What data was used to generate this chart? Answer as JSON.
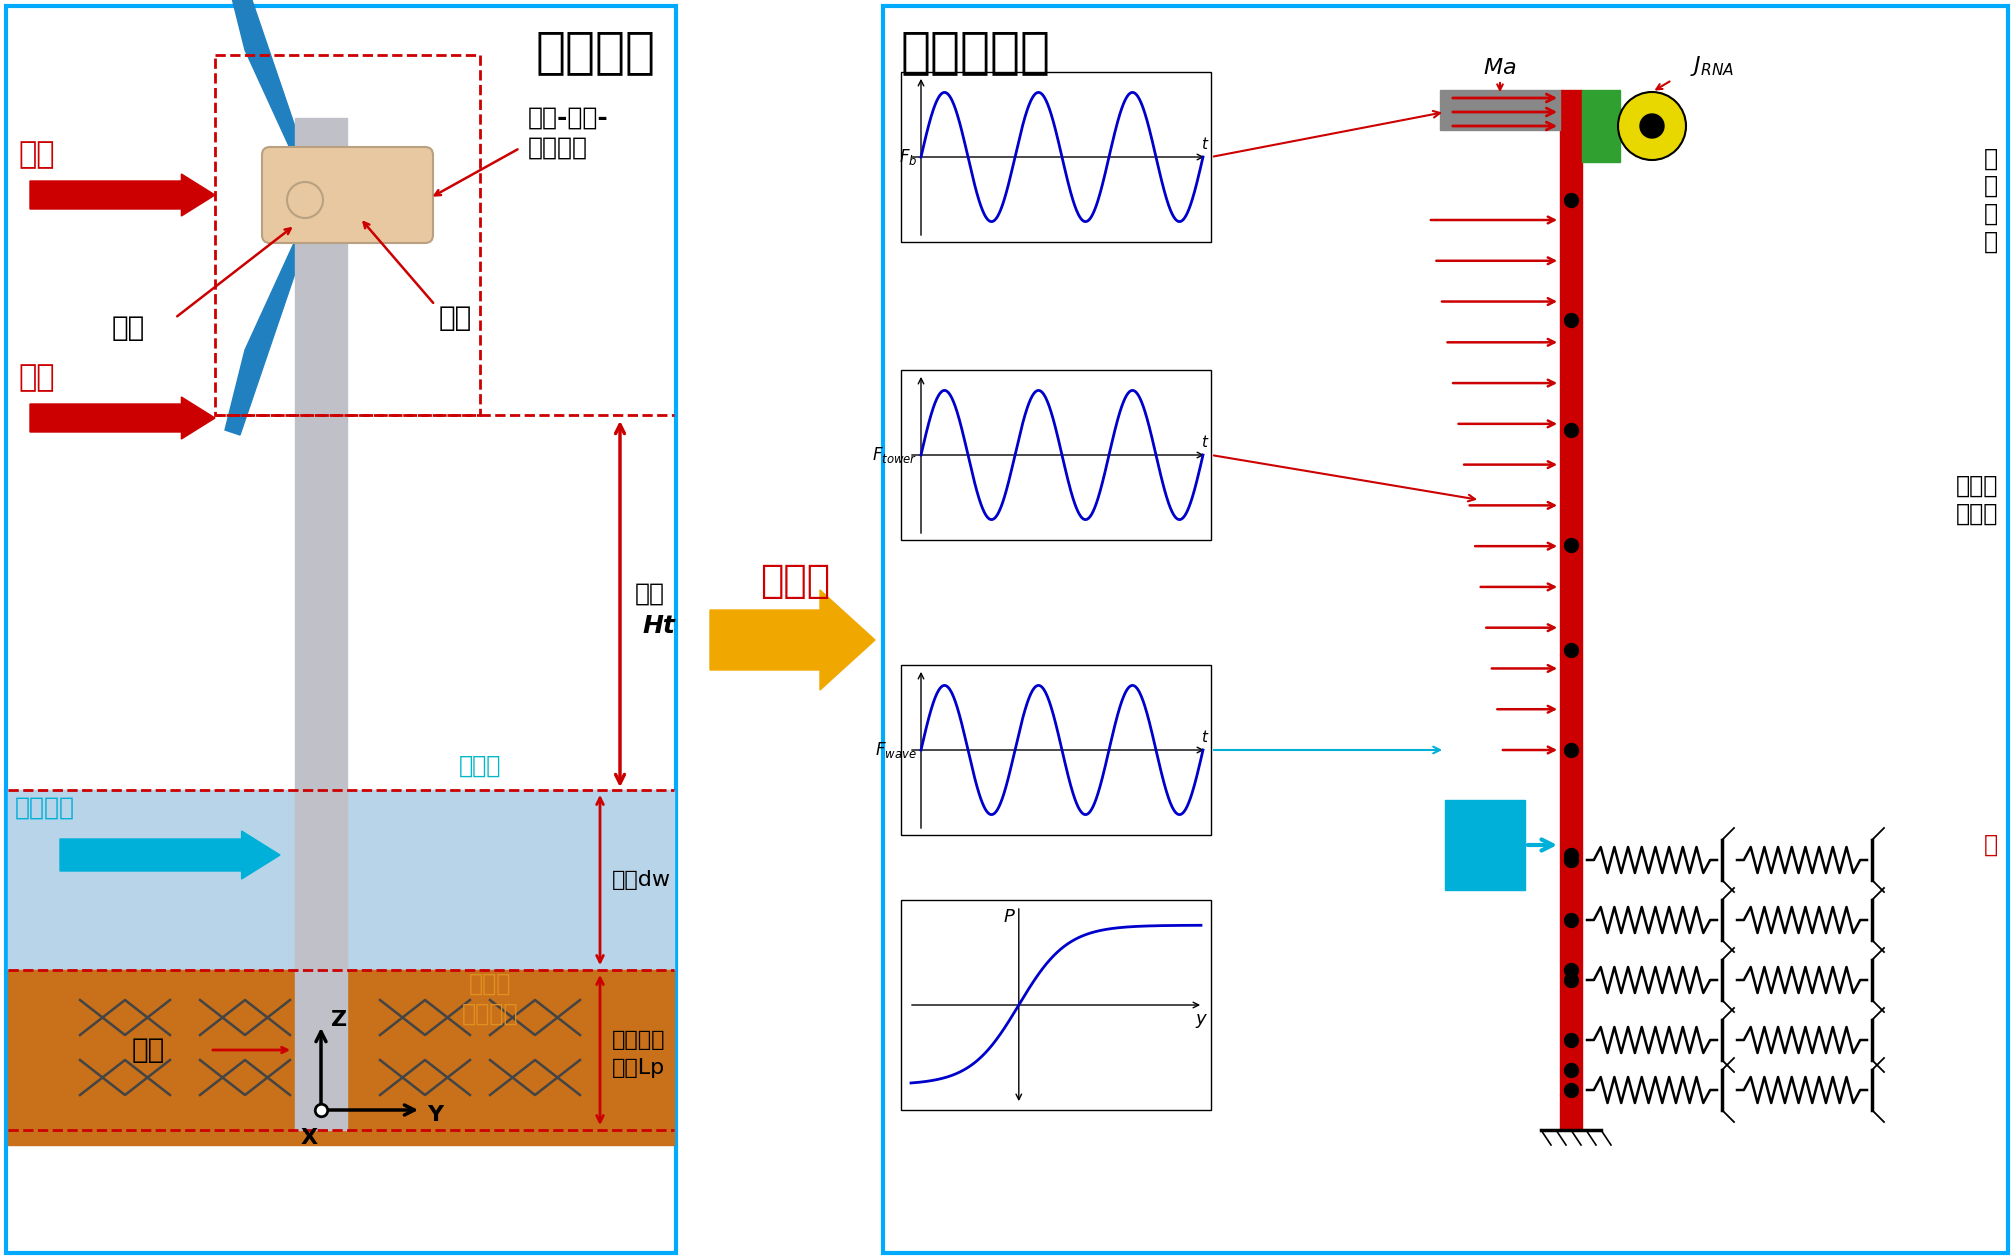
{
  "title_left": "物理模型",
  "title_right": "有限元模型",
  "discretize_text": "离散化",
  "bg_color": "#ffffff",
  "water_color": "#b8d4e8",
  "soil_color": "#c8701a",
  "tower_color": "#c0c0c8",
  "blade_color": "#2080c0",
  "nacelle_color": "#e8c8a0",
  "labels": {
    "wind_load_top": "载荷",
    "wind_load_mid": "载荷",
    "wave_load": "波浪载荷",
    "hub": "轮毂",
    "nacelle": "舱体",
    "turbine_system_1": "风机-轮毂-",
    "turbine_system_2": "舱体组合",
    "tower_height_1": "塔高",
    "tower_height_2": "Ht",
    "water_depth": "水深dw",
    "sea_level": "海平面",
    "seabed_1": "海底面",
    "seabed_2": "（泥线）",
    "pile_depth_1": "单桩入泥",
    "pile_depth_2": "深度Lp",
    "mono_pile": "单桩",
    "Ma": "Ma",
    "Jrna": "J_{RNA}",
    "tower_wind_1": "塔所受",
    "tower_wind_2": "风载荷",
    "depth_label": "深"
  },
  "colors": {
    "red": "#cc0000",
    "cyan_arrow": "#00b0d8",
    "orange": "#f0a800",
    "blue_wave": "#0000cc",
    "sea_level_text": "#00b8c8",
    "seabed_text": "#e09020",
    "green_box": "#30a030",
    "panel_border": "#00aaff"
  }
}
